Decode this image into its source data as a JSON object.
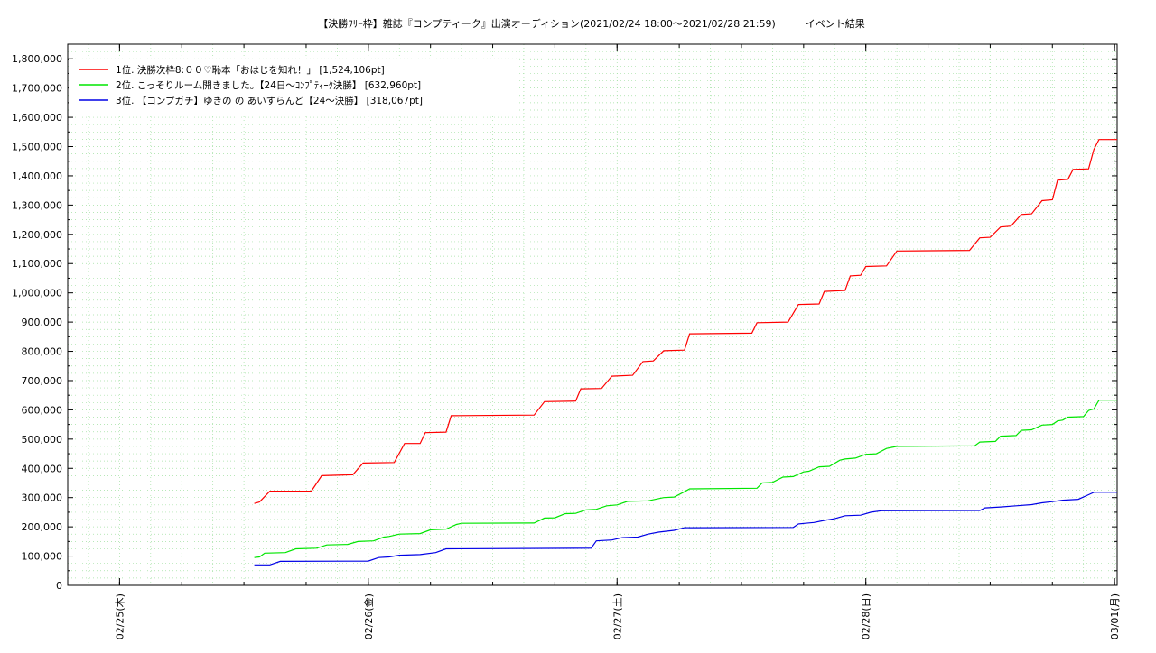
{
  "chart_data": {
    "type": "line",
    "title": "【決勝ﾌﾘｰ枠】雑誌『コンプティーク』出演オーディション(2021/02/24 18:00～2021/02/28 21:59)　　　イベント結果",
    "xlabel": "",
    "ylabel": "",
    "ylim": [
      0,
      1850000
    ],
    "y_ticks": [
      0,
      100000,
      200000,
      300000,
      400000,
      500000,
      600000,
      700000,
      800000,
      900000,
      1000000,
      1100000,
      1200000,
      1300000,
      1400000,
      1500000,
      1600000,
      1700000,
      1800000
    ],
    "y_tick_labels": [
      "0",
      "100,000",
      "200,000",
      "300,000",
      "400,000",
      "500,000",
      "600,000",
      "700,000",
      "800,000",
      "900,000",
      "1,000,000",
      "1,100,000",
      "1,200,000",
      "1,300,000",
      "1,400,000",
      "1,500,000",
      "1,600,000",
      "1,700,000",
      "1,800,000"
    ],
    "x_range": [
      "2021-02-24 19:00",
      "2021-03-01 00:15"
    ],
    "x_ticks": [
      "2021-02-25 00:00",
      "2021-02-26 00:00",
      "2021-02-27 00:00",
      "2021-02-28 00:00",
      "2021-03-01 00:00"
    ],
    "x_tick_labels": [
      "02/25(木)",
      "02/26(金)",
      "02/27(土)",
      "02/28(日)",
      "03/01(月)"
    ],
    "grid": true,
    "legend_position": "top-left",
    "series": [
      {
        "name": "1位. 決勝次枠8:００♡恥本「おはじを知れ！」 [1,524,106pt]",
        "color": "#ff0000",
        "points": [
          [
            "2021-02-25 13:00",
            280000
          ],
          [
            "2021-02-25 13:30",
            285000
          ],
          [
            "2021-02-25 14:30",
            322000
          ],
          [
            "2021-02-25 18:30",
            322000
          ],
          [
            "2021-02-25 19:30",
            375000
          ],
          [
            "2021-02-25 22:30",
            378000
          ],
          [
            "2021-02-25 23:30",
            418000
          ],
          [
            "2021-02-26 02:30",
            420000
          ],
          [
            "2021-02-26 03:30",
            485000
          ],
          [
            "2021-02-26 05:00",
            485000
          ],
          [
            "2021-02-26 05:30",
            522000
          ],
          [
            "2021-02-26 07:30",
            524000
          ],
          [
            "2021-02-26 08:00",
            580000
          ],
          [
            "2021-02-26 16:00",
            582000
          ],
          [
            "2021-02-26 17:00",
            628000
          ],
          [
            "2021-02-26 20:00",
            630000
          ],
          [
            "2021-02-26 20:30",
            672000
          ],
          [
            "2021-02-26 22:30",
            673000
          ],
          [
            "2021-02-26 23:30",
            715000
          ],
          [
            "2021-02-27 01:30",
            718000
          ],
          [
            "2021-02-27 02:30",
            765000
          ],
          [
            "2021-02-27 03:30",
            767000
          ],
          [
            "2021-02-27 04:30",
            802000
          ],
          [
            "2021-02-27 06:30",
            804000
          ],
          [
            "2021-02-27 07:00",
            860000
          ],
          [
            "2021-02-27 13:00",
            862000
          ],
          [
            "2021-02-27 13:30",
            898000
          ],
          [
            "2021-02-27 16:30",
            900000
          ],
          [
            "2021-02-27 17:30",
            960000
          ],
          [
            "2021-02-27 19:30",
            962000
          ],
          [
            "2021-02-27 20:00",
            1005000
          ],
          [
            "2021-02-27 22:00",
            1008000
          ],
          [
            "2021-02-27 22:30",
            1058000
          ],
          [
            "2021-02-27 23:30",
            1060000
          ],
          [
            "2021-02-28 00:00",
            1090000
          ],
          [
            "2021-02-28 02:00",
            1092000
          ],
          [
            "2021-02-28 03:00",
            1143000
          ],
          [
            "2021-02-28 10:00",
            1145000
          ],
          [
            "2021-02-28 11:00",
            1188000
          ],
          [
            "2021-02-28 12:00",
            1190000
          ],
          [
            "2021-02-28 13:00",
            1225000
          ],
          [
            "2021-02-28 14:00",
            1228000
          ],
          [
            "2021-02-28 15:00",
            1268000
          ],
          [
            "2021-02-28 16:00",
            1270000
          ],
          [
            "2021-02-28 17:00",
            1315000
          ],
          [
            "2021-02-28 18:00",
            1318000
          ],
          [
            "2021-02-28 18:30",
            1385000
          ],
          [
            "2021-02-28 19:30",
            1388000
          ],
          [
            "2021-02-28 20:00",
            1422000
          ],
          [
            "2021-02-28 21:30",
            1424000
          ],
          [
            "2021-02-28 22:00",
            1490000
          ],
          [
            "2021-02-28 22:30",
            1524106
          ],
          [
            "2021-03-01 00:15",
            1524106
          ]
        ]
      },
      {
        "name": "2位. こっそりルーム開きました。【24日～ｺﾝﾌﾟﾃｨｰｸ決勝】 [632,960pt]",
        "color": "#00e600",
        "points": [
          [
            "2021-02-25 13:00",
            95000
          ],
          [
            "2021-02-25 13:30",
            97000
          ],
          [
            "2021-02-25 14:00",
            110000
          ],
          [
            "2021-02-25 16:00",
            112000
          ],
          [
            "2021-02-25 17:00",
            125000
          ],
          [
            "2021-02-25 19:00",
            127000
          ],
          [
            "2021-02-25 20:00",
            138000
          ],
          [
            "2021-02-25 22:00",
            140000
          ],
          [
            "2021-02-25 23:00",
            150000
          ],
          [
            "2021-02-26 00:30",
            152000
          ],
          [
            "2021-02-26 01:30",
            165000
          ],
          [
            "2021-02-26 02:00",
            167000
          ],
          [
            "2021-02-26 03:00",
            175000
          ],
          [
            "2021-02-26 05:00",
            177000
          ],
          [
            "2021-02-26 06:00",
            190000
          ],
          [
            "2021-02-26 07:30",
            192000
          ],
          [
            "2021-02-26 08:30",
            208000
          ],
          [
            "2021-02-26 09:00",
            212000
          ],
          [
            "2021-02-26 16:00",
            213000
          ],
          [
            "2021-02-26 17:00",
            230000
          ],
          [
            "2021-02-26 18:00",
            231000
          ],
          [
            "2021-02-26 19:00",
            245000
          ],
          [
            "2021-02-26 20:00",
            246000
          ],
          [
            "2021-02-26 21:00",
            258000
          ],
          [
            "2021-02-26 22:00",
            260000
          ],
          [
            "2021-02-26 23:00",
            272000
          ],
          [
            "2021-02-27 00:00",
            275000
          ],
          [
            "2021-02-27 01:00",
            287000
          ],
          [
            "2021-02-27 03:00",
            289000
          ],
          [
            "2021-02-27 04:30",
            300000
          ],
          [
            "2021-02-27 05:30",
            302000
          ],
          [
            "2021-02-27 06:30",
            320000
          ],
          [
            "2021-02-27 07:00",
            330000
          ],
          [
            "2021-02-27 13:30",
            332000
          ],
          [
            "2021-02-27 14:00",
            350000
          ],
          [
            "2021-02-27 15:00",
            352000
          ],
          [
            "2021-02-27 16:00",
            370000
          ],
          [
            "2021-02-27 17:00",
            372000
          ],
          [
            "2021-02-27 18:00",
            388000
          ],
          [
            "2021-02-27 18:30",
            390000
          ],
          [
            "2021-02-27 19:30",
            405000
          ],
          [
            "2021-02-27 20:30",
            407000
          ],
          [
            "2021-02-27 21:30",
            428000
          ],
          [
            "2021-02-27 22:00",
            432000
          ],
          [
            "2021-02-27 23:00",
            435000
          ],
          [
            "2021-02-28 00:00",
            448000
          ],
          [
            "2021-02-28 01:00",
            450000
          ],
          [
            "2021-02-28 02:00",
            468000
          ],
          [
            "2021-02-28 03:00",
            475000
          ],
          [
            "2021-02-28 10:30",
            477000
          ],
          [
            "2021-02-28 11:00",
            490000
          ],
          [
            "2021-02-28 12:30",
            492000
          ],
          [
            "2021-02-28 13:00",
            510000
          ],
          [
            "2021-02-28 14:30",
            512000
          ],
          [
            "2021-02-28 15:00",
            530000
          ],
          [
            "2021-02-28 16:00",
            532000
          ],
          [
            "2021-02-28 17:00",
            548000
          ],
          [
            "2021-02-28 18:00",
            550000
          ],
          [
            "2021-02-28 18:30",
            562000
          ],
          [
            "2021-02-28 19:00",
            565000
          ],
          [
            "2021-02-28 19:30",
            575000
          ],
          [
            "2021-02-28 21:00",
            577000
          ],
          [
            "2021-02-28 21:30",
            598000
          ],
          [
            "2021-02-28 22:00",
            603000
          ],
          [
            "2021-02-28 22:30",
            632960
          ],
          [
            "2021-03-01 00:15",
            632960
          ]
        ]
      },
      {
        "name": "3位. 【コンプガチ】ゆきの の あいすらんど【24～決勝】 [318,067pt]",
        "color": "#0000e6",
        "points": [
          [
            "2021-02-25 13:00",
            70000
          ],
          [
            "2021-02-25 14:30",
            70000
          ],
          [
            "2021-02-25 15:30",
            82000
          ],
          [
            "2021-02-26 00:00",
            83000
          ],
          [
            "2021-02-26 01:00",
            95000
          ],
          [
            "2021-02-26 02:00",
            97000
          ],
          [
            "2021-02-26 03:00",
            103000
          ],
          [
            "2021-02-26 05:00",
            105000
          ],
          [
            "2021-02-26 06:30",
            112000
          ],
          [
            "2021-02-26 07:30",
            125000
          ],
          [
            "2021-02-26 21:30",
            127000
          ],
          [
            "2021-02-26 22:00",
            152000
          ],
          [
            "2021-02-26 23:30",
            155000
          ],
          [
            "2021-02-27 00:30",
            163000
          ],
          [
            "2021-02-27 02:00",
            165000
          ],
          [
            "2021-02-27 03:00",
            175000
          ],
          [
            "2021-02-27 04:00",
            182000
          ],
          [
            "2021-02-27 05:30",
            188000
          ],
          [
            "2021-02-27 06:30",
            197000
          ],
          [
            "2021-02-27 17:00",
            198000
          ],
          [
            "2021-02-27 17:30",
            210000
          ],
          [
            "2021-02-27 19:00",
            215000
          ],
          [
            "2021-02-27 20:00",
            222000
          ],
          [
            "2021-02-27 21:00",
            228000
          ],
          [
            "2021-02-27 22:00",
            238000
          ],
          [
            "2021-02-27 23:30",
            240000
          ],
          [
            "2021-02-28 00:30",
            250000
          ],
          [
            "2021-02-28 01:30",
            255000
          ],
          [
            "2021-02-28 11:00",
            256000
          ],
          [
            "2021-02-28 11:30",
            265000
          ],
          [
            "2021-02-28 13:00",
            268000
          ],
          [
            "2021-02-28 14:30",
            272000
          ],
          [
            "2021-02-28 16:00",
            276000
          ],
          [
            "2021-02-28 17:00",
            282000
          ],
          [
            "2021-02-28 18:00",
            286000
          ],
          [
            "2021-02-28 19:00",
            291000
          ],
          [
            "2021-02-28 20:30",
            294000
          ],
          [
            "2021-02-28 21:30",
            310000
          ],
          [
            "2021-02-28 22:00",
            318067
          ],
          [
            "2021-03-01 00:15",
            318067
          ]
        ]
      }
    ]
  }
}
